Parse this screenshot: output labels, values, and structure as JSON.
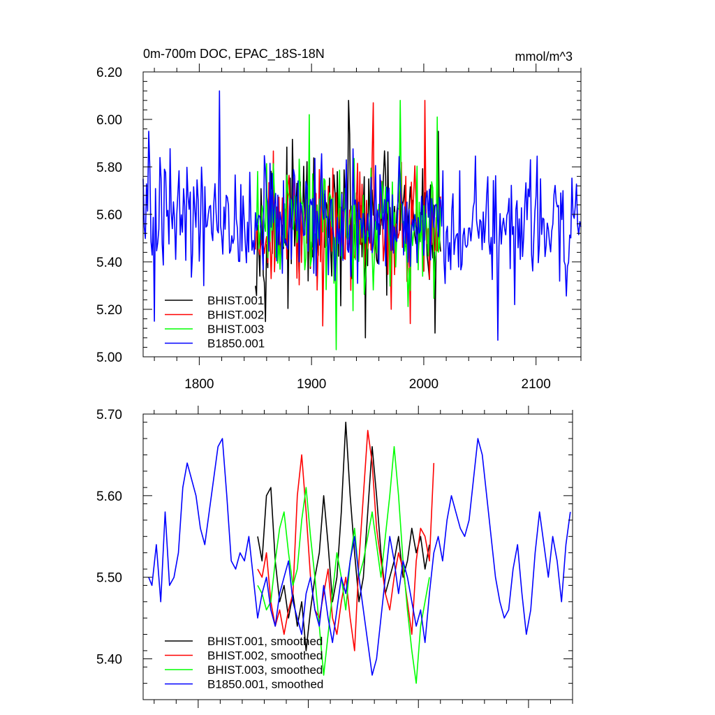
{
  "chart_data": [
    {
      "type": "line",
      "title": "0m-700m DOC, EPAC_18S-18N",
      "units": "mmol/m^3",
      "xlabel": "",
      "ylabel": "",
      "xlim": [
        1750,
        2140
      ],
      "ylim": [
        5.0,
        6.2
      ],
      "xticks": [
        1800,
        1900,
        2000,
        2100
      ],
      "xtick_labels": [
        "1800",
        "1900",
        "2000",
        "2100"
      ],
      "yticks": [
        5.0,
        5.2,
        5.4,
        5.6,
        5.8,
        6.0,
        6.2
      ],
      "ytick_labels": [
        "5.00",
        "5.20",
        "5.40",
        "5.60",
        "5.80",
        "6.00",
        "6.20"
      ],
      "legend_position": "bottom-left",
      "series": [
        {
          "name": "BHIST.001",
          "color": "#000000",
          "x_range": [
            1850,
            2015
          ],
          "mean": 5.55,
          "amplitude": 0.22,
          "extremes": [
            [
              1933,
              6.08
            ],
            [
              1948,
              5.08
            ],
            [
              2010,
              5.1
            ],
            [
              2013,
              5.95
            ]
          ]
        },
        {
          "name": "BHIST.002",
          "color": "#ff0000",
          "x_range": [
            1850,
            2015
          ],
          "mean": 5.55,
          "amplitude": 0.22,
          "extremes": [
            [
              1955,
              6.07
            ],
            [
              1988,
              5.14
            ],
            [
              2001,
              6.08
            ],
            [
              1910,
              5.13
            ]
          ]
        },
        {
          "name": "BHIST.003",
          "color": "#00ff00",
          "x_range": [
            1850,
            2015
          ],
          "mean": 5.55,
          "amplitude": 0.22,
          "extremes": [
            [
              1922,
              5.03
            ],
            [
              1979,
              6.08
            ],
            [
              1898,
              6.02
            ],
            [
              2012,
              6.01
            ]
          ]
        },
        {
          "name": "B1850.001",
          "color": "#0000ff",
          "x_range": [
            1750,
            2140
          ],
          "mean": 5.56,
          "amplitude": 0.2,
          "extremes": [
            [
              1818,
              6.12
            ],
            [
              1755,
              5.95
            ],
            [
              1760,
              5.15
            ],
            [
              2066,
              5.07
            ],
            [
              2095,
              5.83
            ]
          ]
        }
      ]
    },
    {
      "type": "line",
      "title": "",
      "xlim": [
        1750,
        2140
      ],
      "ylim": [
        5.35,
        5.7
      ],
      "xticks": [
        1800,
        1900,
        2000,
        2100
      ],
      "yticks": [
        5.4,
        5.5,
        5.6,
        5.7
      ],
      "ytick_labels": [
        "5.40",
        "5.50",
        "5.60",
        "5.70"
      ],
      "legend_position": "bottom-left",
      "series": [
        {
          "name": "BHIST.001, smoothed",
          "color": "#000000",
          "x": [
            1854,
            1858,
            1862,
            1866,
            1870,
            1874,
            1878,
            1882,
            1886,
            1890,
            1894,
            1898,
            1902,
            1906,
            1910,
            1914,
            1918,
            1922,
            1926,
            1930,
            1934,
            1938,
            1942,
            1946,
            1950,
            1954,
            1958,
            1962,
            1966,
            1970,
            1974,
            1978,
            1982,
            1986,
            1990,
            1994,
            1998,
            2002,
            2006,
            2010
          ],
          "values": [
            5.55,
            5.52,
            5.6,
            5.61,
            5.52,
            5.47,
            5.49,
            5.45,
            5.48,
            5.44,
            5.47,
            5.41,
            5.46,
            5.5,
            5.53,
            5.6,
            5.54,
            5.47,
            5.5,
            5.58,
            5.69,
            5.6,
            5.53,
            5.47,
            5.5,
            5.58,
            5.66,
            5.6,
            5.53,
            5.48,
            5.5,
            5.52,
            5.55,
            5.5,
            5.52,
            5.56,
            5.53,
            5.55,
            5.51,
            5.54
          ]
        },
        {
          "name": "BHIST.002, smoothed",
          "color": "#ff0000",
          "x": [
            1854,
            1858,
            1862,
            1866,
            1870,
            1874,
            1878,
            1882,
            1886,
            1890,
            1894,
            1898,
            1902,
            1906,
            1910,
            1914,
            1918,
            1922,
            1926,
            1930,
            1934,
            1938,
            1942,
            1946,
            1950,
            1954,
            1958,
            1962,
            1966,
            1970,
            1974,
            1978,
            1982,
            1986,
            1990,
            1994,
            1998,
            2002,
            2006,
            2010,
            2014
          ],
          "values": [
            5.51,
            5.5,
            5.53,
            5.47,
            5.44,
            5.46,
            5.43,
            5.46,
            5.48,
            5.6,
            5.65,
            5.58,
            5.5,
            5.46,
            5.45,
            5.48,
            5.51,
            5.45,
            5.43,
            5.47,
            5.5,
            5.45,
            5.41,
            5.52,
            5.6,
            5.68,
            5.64,
            5.56,
            5.52,
            5.48,
            5.46,
            5.5,
            5.53,
            5.51,
            5.47,
            5.43,
            5.52,
            5.56,
            5.55,
            5.52,
            5.64
          ]
        },
        {
          "name": "BHIST.003, smoothed",
          "color": "#00ff00",
          "x": [
            1854,
            1858,
            1862,
            1866,
            1870,
            1874,
            1878,
            1882,
            1886,
            1890,
            1894,
            1898,
            1902,
            1906,
            1910,
            1914,
            1918,
            1922,
            1926,
            1930,
            1934,
            1938,
            1942,
            1946,
            1950,
            1954,
            1958,
            1962,
            1966,
            1970,
            1974,
            1978,
            1982,
            1986,
            1990,
            1994,
            1998,
            2002,
            2006,
            2010
          ],
          "values": [
            5.49,
            5.48,
            5.46,
            5.47,
            5.52,
            5.56,
            5.58,
            5.53,
            5.49,
            5.51,
            5.57,
            5.61,
            5.55,
            5.5,
            5.44,
            5.38,
            5.43,
            5.48,
            5.53,
            5.5,
            5.46,
            5.52,
            5.56,
            5.5,
            5.52,
            5.55,
            5.58,
            5.54,
            5.5,
            5.55,
            5.6,
            5.66,
            5.6,
            5.52,
            5.46,
            5.41,
            5.37,
            5.44,
            5.47,
            5.5
          ]
        },
        {
          "name": "B1850.001, smoothed",
          "color": "#0000ff",
          "x": [
            1755,
            1758,
            1762,
            1766,
            1770,
            1774,
            1778,
            1782,
            1786,
            1790,
            1794,
            1798,
            1802,
            1806,
            1810,
            1814,
            1818,
            1822,
            1826,
            1830,
            1834,
            1838,
            1842,
            1846,
            1850,
            1854,
            1858,
            1862,
            1866,
            1870,
            1874,
            1878,
            1882,
            1886,
            1890,
            1894,
            1898,
            1902,
            1906,
            1910,
            1914,
            1918,
            1922,
            1926,
            1930,
            1934,
            1938,
            1942,
            1946,
            1950,
            1954,
            1958,
            1962,
            1966,
            1970,
            1974,
            1978,
            1982,
            1986,
            1990,
            1994,
            1998,
            2002,
            2006,
            2010,
            2014,
            2018,
            2022,
            2026,
            2030,
            2034,
            2038,
            2042,
            2046,
            2050,
            2054,
            2058,
            2062,
            2066,
            2070,
            2074,
            2078,
            2082,
            2086,
            2090,
            2094,
            2098,
            2102,
            2106,
            2110,
            2114,
            2118,
            2122,
            2126,
            2130,
            2134,
            2138
          ],
          "values": [
            5.5,
            5.49,
            5.54,
            5.47,
            5.58,
            5.49,
            5.5,
            5.53,
            5.61,
            5.64,
            5.62,
            5.6,
            5.56,
            5.54,
            5.58,
            5.62,
            5.66,
            5.67,
            5.6,
            5.52,
            5.51,
            5.53,
            5.52,
            5.55,
            5.5,
            5.45,
            5.48,
            5.5,
            5.46,
            5.44,
            5.48,
            5.5,
            5.52,
            5.47,
            5.45,
            5.43,
            5.48,
            5.5,
            5.46,
            5.44,
            5.49,
            5.45,
            5.42,
            5.46,
            5.5,
            5.48,
            5.52,
            5.55,
            5.5,
            5.46,
            5.42,
            5.38,
            5.4,
            5.45,
            5.5,
            5.55,
            5.52,
            5.48,
            5.52,
            5.5,
            5.47,
            5.44,
            5.46,
            5.42,
            5.48,
            5.53,
            5.55,
            5.52,
            5.57,
            5.6,
            5.58,
            5.56,
            5.55,
            5.57,
            5.62,
            5.67,
            5.65,
            5.6,
            5.55,
            5.5,
            5.47,
            5.45,
            5.46,
            5.51,
            5.54,
            5.48,
            5.43,
            5.46,
            5.53,
            5.58,
            5.54,
            5.5,
            5.55,
            5.52,
            5.47,
            5.54,
            5.58
          ]
        }
      ]
    }
  ]
}
